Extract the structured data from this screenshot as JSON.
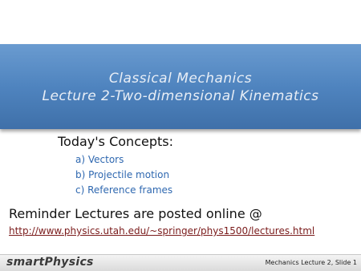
{
  "header": {
    "title": [
      "Classical Mechanics",
      "Lecture 2-Two-dimensional Kinematics"
    ]
  },
  "concepts": {
    "heading": "Today's Concepts:",
    "items": [
      "a) Vectors",
      "b) Projectile motion",
      "c) Reference frames"
    ]
  },
  "reminder": {
    "text": "Reminder Lectures are posted online @",
    "link": "http://www.physics.utah.edu/~springer/phys1500/lectures.html"
  },
  "footer": {
    "logo": "smartPhysics",
    "slide_label": "Mechanics  Lecture 2, Slide 1"
  }
}
